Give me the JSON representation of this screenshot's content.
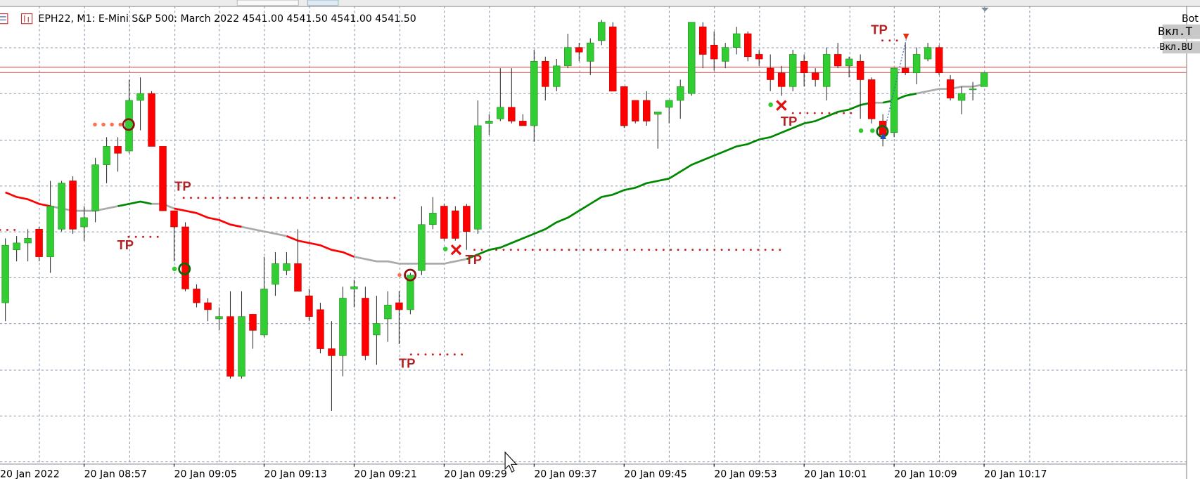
{
  "header": {
    "symbol_text": "EPH22, M1:  E-Mini S&P 500: March 2022  4541.00 4541.50 4541.00 4541.50"
  },
  "buttons": {
    "bot": "Bot",
    "t": "Вкл.T",
    "bu": "Вкл.BU"
  },
  "chart_data": {
    "type": "candlestick",
    "date_label": "20 Jan 2022",
    "categories": [
      null,
      null,
      null,
      null,
      null,
      null,
      null,
      "20 Jan 08:57",
      null,
      null,
      null,
      null,
      null,
      null,
      null,
      "20 Jan 09:05",
      null,
      null,
      null,
      null,
      null,
      null,
      null,
      "20 Jan 09:13",
      null,
      null,
      null,
      null,
      null,
      null,
      null,
      "20 Jan 09:21",
      null,
      null,
      null,
      null,
      null,
      null,
      null,
      "20 Jan 09:29",
      null,
      null,
      null,
      null,
      null,
      null,
      null,
      "20 Jan 09:37",
      null,
      null,
      null,
      null,
      null,
      null,
      null,
      "20 Jan 09:45",
      null,
      null,
      null,
      null,
      null,
      null,
      null,
      "20 Jan 09:53",
      null,
      null,
      null,
      null,
      null,
      null,
      null,
      "20 Jan 10:01",
      null,
      null,
      null,
      null,
      null,
      null,
      null,
      "20 Jan 10:09",
      null,
      null,
      null,
      null,
      null,
      null,
      null,
      "20 Jan 10:17"
    ],
    "open": [
      4517.25,
      4523,
      4523.75,
      4525.25,
      4522.25,
      4525.25,
      4530.5,
      4525.5,
      4527.25,
      4532.25,
      4534.25,
      4533.75,
      4539.25,
      4540,
      4534.25,
      4527.25,
      4525.5,
      4518.75,
      4517.25,
      4515.5,
      4515.75,
      4509.25,
      4516,
      4513.75,
      4519.25,
      4520.75,
      4521.5,
      4518,
      4516.5,
      4512.25,
      4511.5,
      4518.75,
      4517.75,
      4513.75,
      4515.5,
      4517.25,
      4516.5,
      4520.75,
      4525.75,
      4527.75,
      4527.25,
      4527.75,
      4525.25,
      4536.75,
      4537.25,
      4538.5,
      4537,
      4536.5,
      4543.5,
      4540.75,
      4543,
      4545,
      4543.5,
      4545.75,
      4547.25,
      4540.75,
      4539.25,
      4539.25,
      4537.75,
      4538.5,
      4539.25,
      4540,
      4547.25,
      4545.25,
      4543.5,
      4545,
      4546.5,
      4544.25,
      4542.75,
      4542.25,
      4540.75,
      4543.5,
      4542.25,
      4540.75,
      4544.25,
      4543,
      4543.5,
      4541.5,
      4537,
      4535.75,
      4542.75,
      4542.25,
      4543.75,
      4545,
      4541.5,
      4539.25,
      4540.5,
      4540.75
    ],
    "high": [
      4524.25,
      4524.5,
      4525.25,
      4525.5,
      4530.5,
      4530.5,
      4531,
      4527.75,
      4533,
      4535.25,
      4535.25,
      4541.5,
      4541.75,
      4540.25,
      4534.25,
      4527.25,
      4526,
      4519.25,
      4517.75,
      4516.75,
      4518.5,
      4518.5,
      4516,
      4522.25,
      4522.75,
      4522.75,
      4525.25,
      4518.75,
      4517.25,
      4515.25,
      4519,
      4519.75,
      4519,
      4518,
      4518.5,
      4518.5,
      4520.5,
      4527.75,
      4528.75,
      4528,
      4527.75,
      4528,
      4539.25,
      4537.75,
      4542.75,
      4542.75,
      4537.75,
      4544.75,
      4544,
      4543.75,
      4546.5,
      4545.5,
      4546,
      4548,
      4547.75,
      4540.75,
      4539.25,
      4540.25,
      4538,
      4539.25,
      4541.5,
      4547.75,
      4547.75,
      4546.75,
      4545.5,
      4547.25,
      4546.75,
      4544.75,
      4544.25,
      4543,
      4544.75,
      4544.25,
      4542.75,
      4545,
      4545.5,
      4544,
      4544.25,
      4541.75,
      4537.75,
      4542.75,
      4545.5,
      4545,
      4545.5,
      4545.25,
      4542,
      4540.75,
      4541.25,
      4542.25
    ],
    "low": [
      4515.25,
      4521.75,
      4521.75,
      4521.75,
      4520.5,
      4525,
      4524.75,
      4524,
      4526,
      4530.25,
      4531.5,
      4533.5,
      4536,
      4534.25,
      4527.25,
      4521.75,
      4518.5,
      4516.75,
      4515.25,
      4514.25,
      4509,
      4509,
      4512.25,
      4513.5,
      4518,
      4520.25,
      4518.5,
      4515.25,
      4511.75,
      4505.5,
      4509.25,
      4516.75,
      4511,
      4510.5,
      4513,
      4512.75,
      4516,
      4520.25,
      4525.25,
      4524,
      4524,
      4523,
      4524.75,
      4535.5,
      4537,
      4536.75,
      4536.5,
      4534.75,
      4539.25,
      4540.25,
      4542.75,
      4543.5,
      4542,
      4545.25,
      4540.25,
      4536.25,
      4536.75,
      4536.5,
      4534,
      4536.75,
      4537.25,
      4539.75,
      4542.75,
      4542.5,
      4542.75,
      4544.25,
      4543.5,
      4543,
      4540.25,
      4539.75,
      4540.25,
      4540.75,
      4540.75,
      4539.25,
      4542.75,
      4541.75,
      4537.25,
      4536.75,
      4534.25,
      4535.25,
      4542,
      4541,
      4543.5,
      4542,
      4539.25,
      4537.75,
      4539.25,
      4540.75
    ],
    "close": [
      4523.5,
      4523.75,
      4524.25,
      4522.25,
      4527.75,
      4530.25,
      4525.25,
      4526.5,
      4532.25,
      4534.25,
      4533.5,
      4539.25,
      4540,
      4534.25,
      4527.25,
      4525.5,
      4518.75,
      4517.25,
      4516.5,
      4515.75,
      4509.25,
      4515.75,
      4514.25,
      4518.75,
      4521.5,
      4521.5,
      4518.5,
      4515.75,
      4512.25,
      4511.5,
      4517.75,
      4519,
      4511.5,
      4515,
      4517,
      4516.5,
      4520.25,
      4525.75,
      4527,
      4524.25,
      4524.25,
      4525,
      4536.5,
      4537,
      4538.5,
      4537,
      4536.5,
      4543.5,
      4540.75,
      4543,
      4545,
      4544.5,
      4545.5,
      4547.75,
      4540.25,
      4536.5,
      4537,
      4537,
      4538,
      4539.25,
      4540.75,
      4547.75,
      4544.25,
      4543.75,
      4545,
      4546.5,
      4544,
      4543.75,
      4541.5,
      4540.75,
      4544.25,
      4542.25,
      4541.5,
      4544.25,
      4543,
      4543.75,
      4541.5,
      4537.25,
      4535.5,
      4542.75,
      4542.25,
      4544.25,
      4545,
      4542.25,
      4539.5,
      4540,
      4540.5,
      4542.25
    ],
    "up_color": "#32cd32",
    "down_color": "#ff0000",
    "ylim": [
      4499.75,
      4549.5
    ],
    "ygrid": [
      4545,
      4540,
      4535,
      4530,
      4525,
      4520,
      4515,
      4510,
      4505,
      4500
    ],
    "grid": true,
    "ma": {
      "values": [
        4529.25,
        4528.75,
        4528.5,
        4528,
        4527.75,
        4527.5,
        4527.25,
        4527.25,
        4527.25,
        4527.5,
        4527.75,
        4528,
        4528.25,
        4528,
        4528,
        4527.5,
        4527.25,
        4527,
        4526.5,
        4526.25,
        4525.75,
        4525.5,
        4525.25,
        4525,
        4524.75,
        4524.5,
        4524,
        4523.75,
        4523.5,
        4523,
        4522.75,
        4522.25,
        4522,
        4521.75,
        4521.75,
        4521.5,
        4521.5,
        4521.5,
        4521.5,
        4521.5,
        4521.75,
        4522,
        4522.5,
        4523,
        4523.25,
        4523.75,
        4524.25,
        4524.75,
        4525.25,
        4526,
        4526.5,
        4527.25,
        4528,
        4528.75,
        4529,
        4529.5,
        4529.75,
        4530.25,
        4530.5,
        4530.75,
        4531.5,
        4532.25,
        4532.75,
        4533.25,
        4533.75,
        4534.25,
        4534.5,
        4535,
        4535.25,
        4535.75,
        4536.25,
        4536.75,
        4537,
        4537.5,
        4538,
        4538.25,
        4538.75,
        4539,
        4539,
        4539.25,
        4539.75,
        4540,
        4540.25,
        4540.5,
        4540.5,
        4540.75,
        4540.75,
        4541
      ],
      "colors": [
        "#f00",
        "#f00",
        "#f00",
        "#f00",
        "#aaa",
        "#aaa",
        "#aaa",
        "#aaa",
        "#aaa",
        "#aaa",
        "#080",
        "#080",
        "#080",
        "#aaa",
        "#aaa",
        "#f00",
        "#f00",
        "#f00",
        "#f00",
        "#f00",
        "#f00",
        "#aaa",
        "#aaa",
        "#aaa",
        "#aaa",
        "#f00",
        "#f00",
        "#f00",
        "#f00",
        "#f00",
        "#f00",
        "#aaa",
        "#aaa",
        "#aaa",
        "#aaa",
        "#aaa",
        "#aaa",
        "#aaa",
        "#aaa",
        "#aaa",
        "#aaa",
        "#080",
        "#080",
        "#080",
        "#080",
        "#080",
        "#080",
        "#080",
        "#080",
        "#080",
        "#080",
        "#080",
        "#080",
        "#080",
        "#080",
        "#080",
        "#080",
        "#080",
        "#080",
        "#080",
        "#080",
        "#080",
        "#080",
        "#080",
        "#080",
        "#080",
        "#080",
        "#080",
        "#080",
        "#080",
        "#080",
        "#080",
        "#080",
        "#080",
        "#080",
        "#080",
        "#080",
        "#aaa",
        "#080",
        "#080",
        "#080",
        "#aaa",
        "#aaa",
        "#aaa",
        "#aaa",
        "#aaa",
        "#aaa",
        "#aaa"
      ]
    },
    "annotations": [
      "TP",
      "TP",
      "TP",
      "TP",
      "TP",
      "TP"
    ]
  }
}
